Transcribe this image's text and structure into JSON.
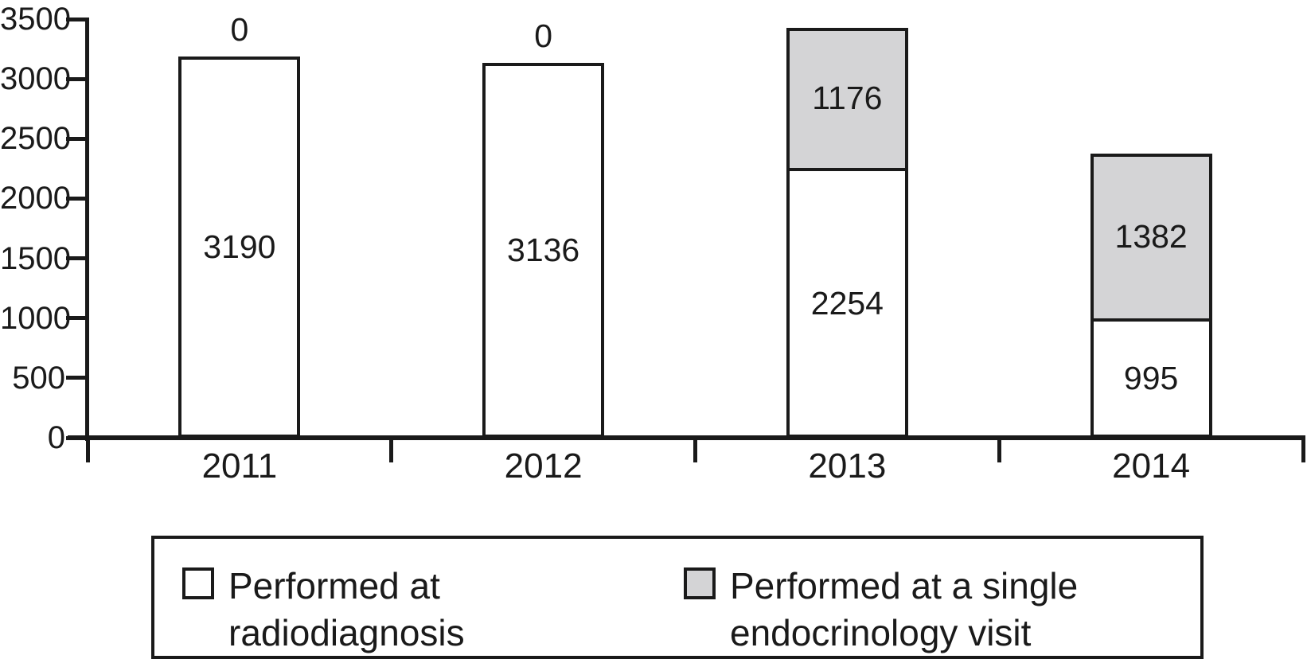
{
  "chart_data": {
    "type": "bar",
    "stacked": true,
    "title": "",
    "xlabel": "",
    "ylabel": "",
    "categories": [
      "2011",
      "2012",
      "2013",
      "2014"
    ],
    "series": [
      {
        "name": "Performed at radiodiagnosis",
        "color": "#ffffff",
        "values": [
          3190,
          3136,
          2254,
          995
        ]
      },
      {
        "name": "Performed at a single endocrinology visit",
        "color": "#d4d4d6",
        "values": [
          0,
          0,
          1176,
          1382
        ]
      }
    ],
    "ylim": [
      0,
      3500
    ],
    "yticks": [
      0,
      500,
      1000,
      1500,
      2000,
      2500,
      3000,
      3500
    ],
    "grid": false,
    "legend_position": "bottom",
    "value_labels": "segment values shown inside segments; zero top-segment values shown above bar top"
  },
  "legend": {
    "items": [
      {
        "swatch_icon": "white-square",
        "color": "#ffffff",
        "lines": [
          "Performed at",
          "radiodiagnosis"
        ]
      },
      {
        "swatch_icon": "gray-square",
        "color": "#d4d4d6",
        "lines": [
          "Performed at a single",
          "endocrinology visit"
        ]
      }
    ]
  },
  "colors": {
    "background": "#ffffff",
    "axis": "#1a1a1a",
    "text": "#1a1a1a",
    "bar_border": "#1a1a1a",
    "white_fill": "#ffffff",
    "gray_fill": "#d4d4d6"
  }
}
